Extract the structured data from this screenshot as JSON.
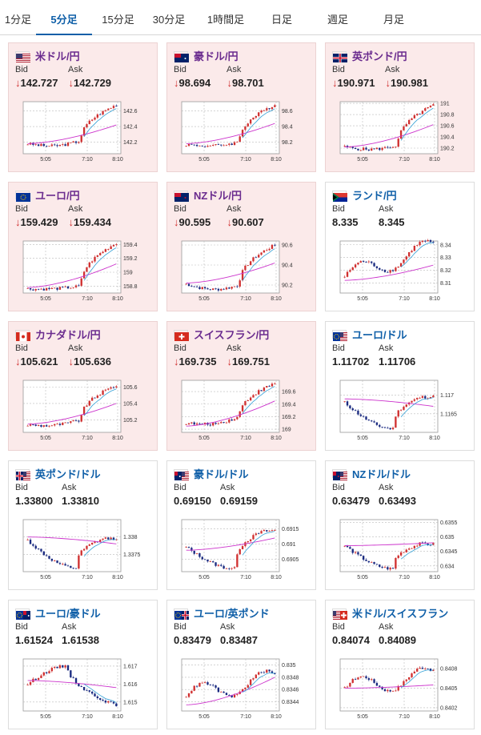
{
  "tabs": [
    {
      "label": "1分足",
      "active": false
    },
    {
      "label": "5分足",
      "active": true
    },
    {
      "label": "15分足",
      "active": false
    },
    {
      "label": "30分足",
      "active": false
    },
    {
      "label": "1時間足",
      "active": false
    },
    {
      "label": "日足",
      "active": false
    },
    {
      "label": "週足",
      "active": false
    },
    {
      "label": "月足",
      "active": false
    }
  ],
  "labels": {
    "bid": "Bid",
    "ask": "Ask",
    "arrow": "↓"
  },
  "colors": {
    "accent": "#0f5fa8",
    "down_bg": "#fbeaea",
    "up_candle": "#d03030",
    "down_candle": "#1a2a80",
    "ma": "#cc33cc",
    "ma2": "#33a0d6"
  },
  "pairs": [
    {
      "name": "米ドル/円",
      "flag": "us",
      "bid": "142.727",
      "ask": "142.729",
      "down": true,
      "chart_data": {
        "type": "candlestick",
        "x_ticks": [
          "5:05",
          "7:10",
          "8:10"
        ],
        "y_ticks": [
          "142.6",
          "142.4",
          "142.2"
        ],
        "ylim": [
          142.05,
          142.72
        ],
        "ma_start": 142.18,
        "ma_end": 142.42,
        "shape": "jump",
        "start": 142.18,
        "low": 142.12,
        "jump_from": 142.22,
        "end": 142.68
      }
    },
    {
      "name": "豪ドル/円",
      "flag": "au",
      "bid": "98.694",
      "ask": "98.701",
      "down": true,
      "chart_data": {
        "type": "candlestick",
        "x_ticks": [
          "5:05",
          "7:10",
          "8:10"
        ],
        "y_ticks": [
          "98.6",
          "98.4",
          "98.2"
        ],
        "ylim": [
          98.05,
          98.72
        ],
        "ma_start": 98.18,
        "ma_end": 98.44,
        "shape": "jump",
        "start": 98.17,
        "low": 98.13,
        "jump_from": 98.2,
        "end": 98.68
      }
    },
    {
      "name": "英ポンド/円",
      "flag": "uk",
      "bid": "190.971",
      "ask": "190.981",
      "down": true,
      "chart_data": {
        "type": "candlestick",
        "x_ticks": [
          "5:05",
          "7:10",
          "8:10"
        ],
        "y_ticks": [
          "191",
          "190.8",
          "190.6",
          "190.4",
          "190.2"
        ],
        "ylim": [
          190.1,
          191.03
        ],
        "ma_start": 190.22,
        "ma_end": 190.62,
        "shape": "jump",
        "start": 190.22,
        "low": 190.15,
        "jump_from": 190.25,
        "end": 190.97
      }
    },
    {
      "name": "ユーロ/円",
      "flag": "eu",
      "bid": "159.429",
      "ask": "159.434",
      "down": true,
      "chart_data": {
        "type": "candlestick",
        "x_ticks": [
          "5:05",
          "7:10",
          "8:10"
        ],
        "y_ticks": [
          "159.4",
          "159.2",
          "159",
          "158.8"
        ],
        "ylim": [
          158.7,
          159.45
        ],
        "ma_start": 158.78,
        "ma_end": 159.12,
        "shape": "jump",
        "start": 158.76,
        "low": 158.74,
        "jump_from": 158.8,
        "end": 159.42
      }
    },
    {
      "name": "NZドル/円",
      "flag": "nz",
      "bid": "90.595",
      "ask": "90.607",
      "down": true,
      "chart_data": {
        "type": "candlestick",
        "x_ticks": [
          "5:05",
          "7:10",
          "8:10"
        ],
        "y_ticks": [
          "90.6",
          "90.4",
          "90.2"
        ],
        "ylim": [
          90.12,
          90.64
        ],
        "ma_start": 90.22,
        "ma_end": 90.42,
        "shape": "jump",
        "start": 90.21,
        "low": 90.15,
        "jump_from": 90.2,
        "end": 90.6
      }
    },
    {
      "name": "ランド/円",
      "flag": "za",
      "bid": "8.335",
      "ask": "8.345",
      "down": false,
      "chart_data": {
        "type": "candlestick",
        "x_ticks": [
          "5:05",
          "7:10",
          "8:10"
        ],
        "y_ticks": [
          "8.34",
          "8.33",
          "8.32",
          "8.31"
        ],
        "ylim": [
          8.302,
          8.343
        ],
        "ma_start": 8.312,
        "ma_end": 8.324,
        "shape": "wavy",
        "start": 8.315,
        "low": 8.31,
        "jump_from": 8.312,
        "end": 8.338
      }
    },
    {
      "name": "カナダドル/円",
      "flag": "ca",
      "bid": "105.621",
      "ask": "105.636",
      "down": true,
      "chart_data": {
        "type": "candlestick",
        "x_ticks": [
          "5:05",
          "7:10",
          "8:10"
        ],
        "y_ticks": [
          "105.6",
          "105.4",
          "105.2"
        ],
        "ylim": [
          105.05,
          105.68
        ],
        "ma_start": 105.15,
        "ma_end": 105.4,
        "shape": "jump",
        "start": 105.14,
        "low": 105.1,
        "jump_from": 105.2,
        "end": 105.62
      }
    },
    {
      "name": "スイスフラン/円",
      "flag": "ch",
      "bid": "169.735",
      "ask": "169.751",
      "down": true,
      "chart_data": {
        "type": "candlestick",
        "x_ticks": [
          "5:05",
          "7:10",
          "8:10"
        ],
        "y_ticks": [
          "169.6",
          "169.4",
          "169.2",
          "169"
        ],
        "ylim": [
          168.95,
          169.78
        ],
        "ma_start": 169.05,
        "ma_end": 169.45,
        "shape": "jump",
        "start": 169.1,
        "low": 169.02,
        "jump_from": 169.2,
        "end": 169.73
      }
    },
    {
      "name": "ユーロ/ドル",
      "flag": "euus",
      "bid": "1.11702",
      "ask": "1.11706",
      "down": false,
      "chart_data": {
        "type": "candlestick",
        "x_ticks": [
          "5:05",
          "7:10",
          "8:10"
        ],
        "y_ticks": [
          "1.117",
          "1.1165"
        ],
        "ylim": [
          1.116,
          1.1174
        ],
        "ma_start": 1.1169,
        "ma_end": 1.1167,
        "shape": "dip",
        "start": 1.1168,
        "low": 1.1161,
        "jump_from": 1.1162,
        "end": 1.117
      }
    },
    {
      "name": "英ポンド/ドル",
      "flag": "ukus",
      "bid": "1.33800",
      "ask": "1.33810",
      "down": false,
      "chart_data": {
        "type": "candlestick",
        "x_ticks": [
          "5:05",
          "7:10",
          "8:10"
        ],
        "y_ticks": [
          "1.338",
          "1.3375"
        ],
        "ylim": [
          1.337,
          1.3385
        ],
        "ma_start": 1.338,
        "ma_end": 1.3378,
        "shape": "dip",
        "start": 1.3379,
        "low": 1.3371,
        "jump_from": 1.3372,
        "end": 1.338
      }
    },
    {
      "name": "豪ドル/ドル",
      "flag": "auus",
      "bid": "0.69150",
      "ask": "0.69159",
      "down": false,
      "chart_data": {
        "type": "candlestick",
        "x_ticks": [
          "5:05",
          "7:10",
          "8:10"
        ],
        "y_ticks": [
          "0.6915",
          "0.691",
          "0.6905"
        ],
        "ylim": [
          0.6901,
          0.6918
        ],
        "ma_start": 0.6908,
        "ma_end": 0.6912,
        "shape": "dip",
        "start": 0.6909,
        "low": 0.6902,
        "jump_from": 0.6903,
        "end": 0.6915
      }
    },
    {
      "name": "NZドル/ドル",
      "flag": "nzus",
      "bid": "0.63479",
      "ask": "0.63493",
      "down": false,
      "chart_data": {
        "type": "candlestick",
        "x_ticks": [
          "5:05",
          "7:10",
          "8:10"
        ],
        "y_ticks": [
          "0.6355",
          "0.635",
          "0.6345",
          "0.634"
        ],
        "ylim": [
          0.6338,
          0.6356
        ],
        "ma_start": 0.6347,
        "ma_end": 0.6348,
        "shape": "dip",
        "start": 0.6347,
        "low": 0.6339,
        "jump_from": 0.634,
        "end": 0.6348
      }
    },
    {
      "name": "ユーロ/豪ドル",
      "flag": "euau",
      "bid": "1.61524",
      "ask": "1.61538",
      "down": false,
      "chart_data": {
        "type": "candlestick",
        "x_ticks": [
          "5:05",
          "7:10",
          "8:10"
        ],
        "y_ticks": [
          "1.617",
          "1.616",
          "1.615"
        ],
        "ylim": [
          1.6145,
          1.6174
        ],
        "ma_start": 1.6162,
        "ma_end": 1.6158,
        "shape": "hump",
        "start": 1.616,
        "low": 1.6148,
        "jump_from": 1.615,
        "end": 1.6152
      }
    },
    {
      "name": "ユーロ/英ポンド",
      "flag": "euuk",
      "bid": "0.83479",
      "ask": "0.83487",
      "down": false,
      "chart_data": {
        "type": "candlestick",
        "x_ticks": [
          "5:05",
          "7:10",
          "8:10"
        ],
        "y_ticks": [
          "0.835",
          "0.8348",
          "0.8346",
          "0.8344"
        ],
        "ylim": [
          0.83425,
          0.8351
        ],
        "ma_start": 0.83435,
        "ma_end": 0.8348,
        "shape": "wavy",
        "start": 0.8345,
        "low": 0.83438,
        "jump_from": 0.8345,
        "end": 0.83478
      }
    },
    {
      "name": "米ドル/スイスフラン",
      "flag": "usch",
      "bid": "0.84074",
      "ask": "0.84089",
      "down": false,
      "chart_data": {
        "type": "candlestick",
        "x_ticks": [
          "5:05",
          "7:10",
          "8:10"
        ],
        "y_ticks": [
          "0.8408",
          "0.8405",
          "0.8402"
        ],
        "ylim": [
          0.84015,
          0.84095
        ],
        "ma_start": 0.8405,
        "ma_end": 0.84055,
        "shape": "wavy",
        "start": 0.8405,
        "low": 0.8402,
        "jump_from": 0.8404,
        "end": 0.8407
      }
    }
  ]
}
